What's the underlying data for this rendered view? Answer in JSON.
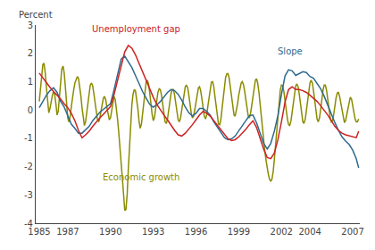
{
  "chart_data": {
    "type": "line",
    "ylabel": "Percent",
    "xlim": [
      1984.75,
      2007.5
    ],
    "xticks": [
      1985,
      1987,
      1990,
      1993,
      1996,
      1999,
      2002,
      2004,
      2007
    ],
    "ylim": [
      -4,
      3
    ],
    "yticks": [
      -4,
      -3,
      -2,
      -1,
      0,
      1,
      2,
      3
    ],
    "grid": false,
    "series": [
      {
        "color": "#8b8b00",
        "x": [
          1985.0,
          1985.08,
          1985.17,
          1985.25,
          1985.33,
          1985.42,
          1985.5,
          1985.58,
          1985.67,
          1985.75,
          1985.83,
          1985.92,
          1986.0,
          1986.08,
          1986.17,
          1986.25,
          1986.33,
          1986.42,
          1986.5,
          1986.58,
          1986.67,
          1986.75,
          1986.83,
          1986.92,
          1987.0,
          1987.08,
          1987.17,
          1987.25,
          1987.33,
          1987.42,
          1987.5,
          1987.58,
          1987.67,
          1987.75,
          1987.83,
          1987.92,
          1988.0,
          1988.08,
          1988.17,
          1988.25,
          1988.33,
          1988.42,
          1988.5,
          1988.58,
          1988.67,
          1988.75,
          1988.83,
          1988.92,
          1989.0,
          1989.08,
          1989.17,
          1989.25,
          1989.33,
          1989.42,
          1989.5,
          1989.58,
          1989.67,
          1989.75,
          1989.83,
          1989.92,
          1990.0,
          1990.08,
          1990.17,
          1990.25,
          1990.33,
          1990.42,
          1990.5,
          1990.58,
          1990.67,
          1990.75,
          1990.83,
          1990.92,
          1991.0,
          1991.08,
          1991.17,
          1991.25,
          1991.33,
          1991.42,
          1991.5,
          1991.58,
          1991.67,
          1991.75,
          1991.83,
          1991.92,
          1992.0,
          1992.08,
          1992.17,
          1992.25,
          1992.33,
          1992.42,
          1992.5,
          1992.58,
          1992.67,
          1992.75,
          1992.83,
          1992.92,
          1993.0,
          1993.08,
          1993.17,
          1993.25,
          1993.33,
          1993.42,
          1993.5,
          1993.58,
          1993.67,
          1993.75,
          1993.83,
          1993.92,
          1994.0,
          1994.08,
          1994.17,
          1994.25,
          1994.33,
          1994.42,
          1994.5,
          1994.58,
          1994.67,
          1994.75,
          1994.83,
          1994.92,
          1995.0,
          1995.08,
          1995.17,
          1995.25,
          1995.33,
          1995.42,
          1995.5,
          1995.58,
          1995.67,
          1995.75,
          1995.83,
          1995.92,
          1996.0,
          1996.08,
          1996.17,
          1996.25,
          1996.33,
          1996.42,
          1996.5,
          1996.58,
          1996.67,
          1996.75,
          1996.83,
          1996.92,
          1997.0,
          1997.08,
          1997.17,
          1997.25,
          1997.33,
          1997.42,
          1997.5,
          1997.58,
          1997.67,
          1997.75,
          1997.83,
          1997.92,
          1998.0,
          1998.08,
          1998.17,
          1998.25,
          1998.33,
          1998.42,
          1998.5,
          1998.58,
          1998.67,
          1998.75,
          1998.83,
          1998.92,
          1999.0,
          1999.08,
          1999.17,
          1999.25,
          1999.33,
          1999.42,
          1999.5,
          1999.58,
          1999.67,
          1999.75,
          1999.83,
          1999.92,
          2000.0,
          2000.08,
          2000.17,
          2000.25,
          2000.33,
          2000.42,
          2000.5,
          2000.58,
          2000.67,
          2000.75,
          2000.83,
          2000.92,
          2001.0,
          2001.08,
          2001.17,
          2001.25,
          2001.33,
          2001.42,
          2001.5,
          2001.58,
          2001.67,
          2001.75,
          2001.83,
          2001.92,
          2002.0,
          2002.08,
          2002.17,
          2002.25,
          2002.33,
          2002.42,
          2002.5,
          2002.58,
          2002.67,
          2002.75,
          2002.83,
          2002.92,
          2003.0,
          2003.08,
          2003.17,
          2003.25,
          2003.33,
          2003.42,
          2003.5,
          2003.58,
          2003.67,
          2003.75,
          2003.83,
          2003.92,
          2004.0,
          2004.08,
          2004.17,
          2004.25,
          2004.33,
          2004.42,
          2004.5,
          2004.58,
          2004.67,
          2004.75,
          2004.83,
          2004.92,
          2005.0,
          2005.08,
          2005.17,
          2005.25,
          2005.33,
          2005.42,
          2005.5,
          2005.58,
          2005.67,
          2005.75,
          2005.83,
          2005.92,
          2006.0,
          2006.08,
          2006.17,
          2006.25,
          2006.33,
          2006.42,
          2006.5,
          2006.58,
          2006.67,
          2006.75,
          2006.83,
          2006.92,
          2007.0,
          2007.08,
          2007.17,
          2007.25,
          2007.33,
          2007.42
        ],
        "values": [
          0.3,
          0.75,
          1.25,
          1.6,
          1.65,
          1.3,
          0.8,
          0.25,
          -0.1,
          0.05,
          0.3,
          0.52,
          0.65,
          0.55,
          0.2,
          -0.18,
          -0.05,
          0.48,
          1.0,
          1.45,
          1.55,
          1.3,
          0.82,
          0.22,
          -0.28,
          -0.42,
          -0.22,
          0.12,
          0.45,
          0.72,
          0.95,
          1.1,
          1.18,
          1.12,
          0.88,
          0.5,
          0.08,
          -0.3,
          -0.55,
          -0.42,
          -0.08,
          0.32,
          0.65,
          0.88,
          0.95,
          0.85,
          0.58,
          0.22,
          -0.1,
          -0.32,
          -0.42,
          -0.3,
          -0.05,
          0.22,
          0.42,
          0.48,
          0.35,
          0.08,
          -0.2,
          -0.35,
          -0.28,
          -0.05,
          0.3,
          0.48,
          0.38,
          0.05,
          -0.35,
          -0.8,
          -1.3,
          -1.8,
          -2.4,
          -3.0,
          -3.55,
          -3.52,
          -2.98,
          -2.1,
          -1.2,
          -0.42,
          0.18,
          0.55,
          0.72,
          0.68,
          0.42,
          0.05,
          -0.38,
          -0.65,
          -0.5,
          -0.12,
          0.32,
          0.72,
          0.98,
          1.05,
          0.92,
          0.62,
          0.22,
          -0.15,
          -0.38,
          -0.28,
          0.05,
          0.38,
          0.62,
          0.75,
          0.72,
          0.52,
          0.18,
          -0.18,
          -0.42,
          -0.48,
          -0.32,
          -0.02,
          0.32,
          0.58,
          0.72,
          0.72,
          0.52,
          0.22,
          -0.1,
          -0.35,
          -0.42,
          -0.28,
          0.0,
          0.32,
          0.62,
          0.82,
          0.88,
          0.78,
          0.52,
          0.18,
          -0.12,
          -0.28,
          -0.22,
          0.02,
          0.32,
          0.6,
          0.78,
          0.82,
          0.68,
          0.38,
          0.05,
          -0.22,
          -0.32,
          -0.18,
          0.12,
          0.48,
          0.8,
          0.98,
          1.0,
          0.82,
          0.48,
          0.08,
          -0.28,
          -0.5,
          -0.52,
          -0.32,
          0.05,
          0.48,
          0.88,
          1.15,
          1.28,
          1.28,
          1.12,
          0.8,
          0.42,
          0.08,
          -0.18,
          -0.22,
          -0.05,
          0.22,
          0.52,
          0.78,
          0.95,
          1.0,
          0.9,
          0.65,
          0.32,
          0.0,
          -0.22,
          -0.28,
          -0.12,
          0.18,
          0.52,
          0.85,
          1.05,
          1.1,
          0.95,
          0.62,
          0.18,
          -0.28,
          -0.72,
          -1.1,
          -1.45,
          -1.78,
          -2.05,
          -2.28,
          -2.45,
          -2.52,
          -2.45,
          -2.18,
          -1.75,
          -1.22,
          -0.65,
          -0.1,
          0.38,
          0.72,
          0.88,
          0.85,
          0.65,
          0.32,
          -0.02,
          -0.32,
          -0.52,
          -0.55,
          -0.38,
          -0.08,
          0.28,
          0.62,
          0.85,
          0.92,
          0.82,
          0.55,
          0.18,
          -0.18,
          -0.42,
          -0.48,
          -0.32,
          -0.02,
          0.35,
          0.7,
          0.95,
          1.05,
          0.95,
          0.68,
          0.3,
          -0.05,
          -0.32,
          -0.42,
          -0.28,
          0.02,
          0.38,
          0.7,
          0.88,
          0.88,
          0.68,
          0.35,
          0.0,
          -0.28,
          -0.42,
          -0.38,
          -0.15,
          0.15,
          0.42,
          0.6,
          0.62,
          0.48,
          0.22,
          -0.08,
          -0.32,
          -0.45,
          -0.38,
          -0.15,
          0.12,
          0.35,
          0.45,
          0.38,
          0.15,
          -0.12,
          -0.32,
          -0.42,
          -0.42,
          -0.32
        ]
      },
      {
        "color": "#2e6a8e",
        "x": [
          1985.0,
          1985.25,
          1985.5,
          1985.75,
          1986.0,
          1986.25,
          1986.5,
          1986.75,
          1987.0,
          1987.25,
          1987.5,
          1987.75,
          1988.0,
          1988.25,
          1988.5,
          1988.75,
          1989.0,
          1989.25,
          1989.5,
          1989.75,
          1990.0,
          1990.25,
          1990.5,
          1990.75,
          1991.0,
          1991.25,
          1991.5,
          1991.75,
          1992.0,
          1992.25,
          1992.5,
          1992.75,
          1993.0,
          1993.25,
          1993.5,
          1993.75,
          1994.0,
          1994.25,
          1994.5,
          1994.75,
          1995.0,
          1995.25,
          1995.5,
          1995.75,
          1996.0,
          1996.25,
          1996.5,
          1996.75,
          1997.0,
          1997.25,
          1997.5,
          1997.75,
          1998.0,
          1998.25,
          1998.5,
          1998.75,
          1999.0,
          1999.25,
          1999.5,
          1999.75,
          2000.0,
          2000.25,
          2000.5,
          2000.75,
          2001.0,
          2001.25,
          2001.5,
          2001.75,
          2002.0,
          2002.25,
          2002.5,
          2002.75,
          2003.0,
          2003.25,
          2003.5,
          2003.75,
          2004.0,
          2004.25,
          2004.5,
          2004.75,
          2005.0,
          2005.25,
          2005.5,
          2005.75,
          2006.0,
          2006.25,
          2006.5,
          2006.75,
          2007.0,
          2007.25,
          2007.42
        ],
        "values": [
          0.08,
          0.32,
          0.52,
          0.68,
          0.78,
          0.62,
          0.3,
          0.1,
          -0.2,
          -0.5,
          -0.65,
          -0.82,
          -0.82,
          -0.7,
          -0.58,
          -0.38,
          -0.22,
          -0.08,
          0.02,
          0.12,
          0.22,
          0.72,
          1.3,
          1.8,
          1.9,
          1.72,
          1.5,
          1.22,
          0.92,
          0.65,
          0.42,
          0.2,
          0.1,
          0.18,
          0.3,
          0.45,
          0.62,
          0.72,
          0.68,
          0.55,
          0.35,
          0.1,
          -0.1,
          -0.22,
          -0.12,
          0.05,
          0.05,
          -0.05,
          -0.18,
          -0.42,
          -0.62,
          -0.8,
          -0.98,
          -1.05,
          -1.02,
          -0.92,
          -0.75,
          -0.55,
          -0.38,
          -0.2,
          -0.18,
          -0.45,
          -0.8,
          -1.18,
          -1.38,
          -1.18,
          -0.75,
          -0.2,
          0.55,
          1.2,
          1.42,
          1.38,
          1.22,
          1.28,
          1.35,
          1.32,
          1.18,
          1.12,
          0.95,
          0.75,
          0.48,
          0.15,
          -0.18,
          -0.45,
          -0.72,
          -0.95,
          -1.1,
          -1.22,
          -1.42,
          -1.72,
          -2.05
        ]
      },
      {
        "color": "#cc2222",
        "x": [
          1985.0,
          1985.25,
          1985.5,
          1985.75,
          1986.0,
          1986.25,
          1986.5,
          1986.75,
          1987.0,
          1987.25,
          1987.5,
          1987.75,
          1988.0,
          1988.25,
          1988.5,
          1988.75,
          1989.0,
          1989.25,
          1989.5,
          1989.75,
          1990.0,
          1990.25,
          1990.5,
          1990.75,
          1991.0,
          1991.25,
          1991.5,
          1991.75,
          1992.0,
          1992.25,
          1992.5,
          1992.75,
          1993.0,
          1993.25,
          1993.5,
          1993.75,
          1994.0,
          1994.25,
          1994.5,
          1994.75,
          1995.0,
          1995.25,
          1995.5,
          1995.75,
          1996.0,
          1996.25,
          1996.5,
          1996.75,
          1997.0,
          1997.25,
          1997.5,
          1997.75,
          1998.0,
          1998.25,
          1998.5,
          1998.75,
          1999.0,
          1999.25,
          1999.5,
          1999.75,
          2000.0,
          2000.25,
          2000.5,
          2000.75,
          2001.0,
          2001.25,
          2001.5,
          2001.75,
          2002.0,
          2002.25,
          2002.5,
          2002.75,
          2003.0,
          2003.25,
          2003.5,
          2003.75,
          2004.0,
          2004.25,
          2004.5,
          2004.75,
          2005.0,
          2005.25,
          2005.5,
          2005.75,
          2006.0,
          2006.25,
          2006.5,
          2006.75,
          2007.0,
          2007.25,
          2007.42
        ],
        "values": [
          1.3,
          1.12,
          0.95,
          0.8,
          0.65,
          0.52,
          0.38,
          0.22,
          0.08,
          -0.12,
          -0.38,
          -0.72,
          -0.98,
          -0.88,
          -0.75,
          -0.58,
          -0.42,
          -0.28,
          -0.15,
          -0.02,
          0.12,
          0.55,
          1.05,
          1.62,
          2.05,
          2.28,
          2.18,
          1.95,
          1.65,
          1.35,
          1.02,
          0.72,
          0.45,
          0.2,
          0.0,
          -0.18,
          -0.35,
          -0.55,
          -0.72,
          -0.88,
          -0.92,
          -0.82,
          -0.68,
          -0.52,
          -0.35,
          -0.18,
          -0.05,
          -0.12,
          -0.22,
          -0.38,
          -0.55,
          -0.72,
          -0.88,
          -1.02,
          -1.08,
          -1.05,
          -0.95,
          -0.82,
          -0.68,
          -0.52,
          -0.38,
          -0.62,
          -1.0,
          -1.38,
          -1.68,
          -1.72,
          -1.52,
          -1.05,
          -0.42,
          0.28,
          0.72,
          0.82,
          0.72,
          0.72,
          0.68,
          0.62,
          0.52,
          0.42,
          0.3,
          0.15,
          0.0,
          -0.18,
          -0.38,
          -0.58,
          -0.72,
          -0.82,
          -0.88,
          -0.92,
          -0.95,
          -0.98,
          -0.75
        ]
      }
    ],
    "annotations": [
      {
        "text": "Slope",
        "x": 2001.6,
        "y": 1.82,
        "color": "#2e6a8e"
      },
      {
        "text": "Unemployment gap",
        "x": 1988.6,
        "y": 2.62,
        "color": "#cc2222"
      },
      {
        "text": "Economic growth",
        "x": 1989.3,
        "y": -2.62,
        "color": "#8b8b00"
      }
    ]
  }
}
